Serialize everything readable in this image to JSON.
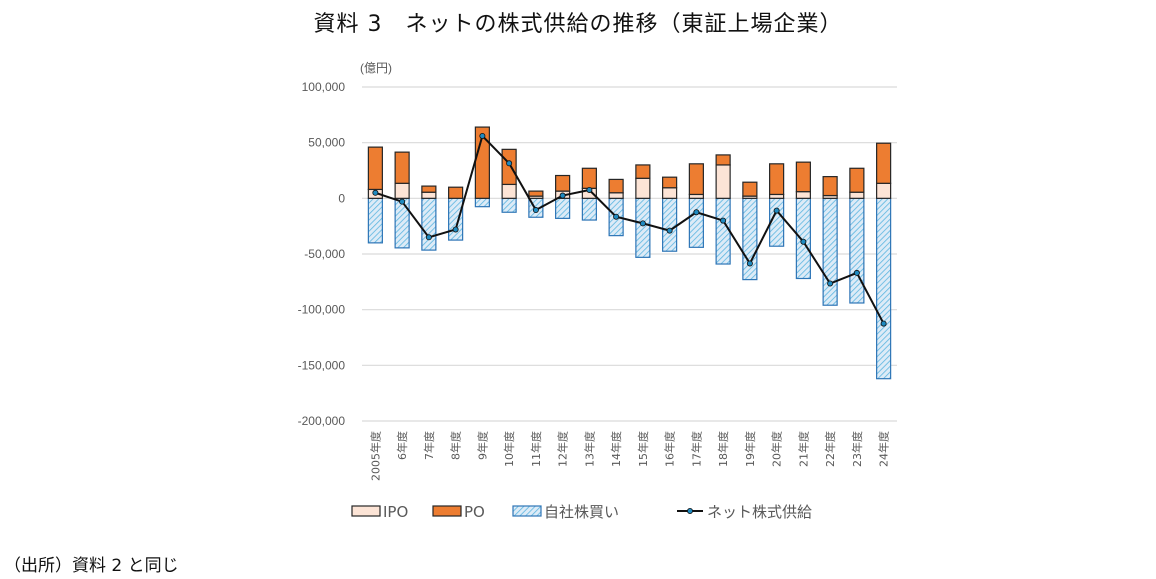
{
  "title": "資料 3　ネットの株式供給の推移（東証上場企業）",
  "source_note": "（出所）資料 2 と同じ",
  "colors": {
    "ipo": "#FCE4D6",
    "po": "#ED7D31",
    "buyback_fill": "#DDEBF7",
    "buyback_hatch": "#5BB5E0",
    "buyback_border": "#2E75B6",
    "bar_border": "#262626",
    "net_line": "#111111",
    "net_marker": "#1F8AC0",
    "grid": "#D9D9D9"
  },
  "chart_data": {
    "type": "bar",
    "subtype": "stacked bar with line overlay",
    "title": "資料 3　ネットの株式供給の推移（東証上場企業）",
    "unit_label": "(億円)",
    "xlabel": "",
    "ylabel": "(億円)",
    "ylim": [
      -200000,
      100000
    ],
    "yticks": [
      100000,
      50000,
      0,
      -50000,
      -100000,
      -150000,
      -200000
    ],
    "ytick_labels": [
      "100,000",
      "50,000",
      "0",
      "-50,000",
      "-100,000",
      "-150,000",
      "-200,000"
    ],
    "grid": true,
    "legend_position": "bottom",
    "categories": [
      "2005年度",
      "6年度",
      "7年度",
      "8年度",
      "9年度",
      "10年度",
      "11年度",
      "12年度",
      "13年度",
      "14年度",
      "15年度",
      "16年度",
      "17年度",
      "18年度",
      "19年度",
      "20年度",
      "21年度",
      "22年度",
      "23年度",
      "24年度"
    ],
    "series": [
      {
        "name": "IPO",
        "kind": "bar",
        "values": [
          8000,
          13500,
          5500,
          0,
          0,
          12500,
          2000,
          6500,
          9000,
          5000,
          18000,
          9500,
          3500,
          30000,
          2000,
          3500,
          6000,
          2500,
          5500,
          13500
        ]
      },
      {
        "name": "PO",
        "kind": "bar",
        "values": [
          38000,
          28000,
          5500,
          10000,
          64000,
          31500,
          4500,
          14000,
          18000,
          12000,
          12000,
          9500,
          27500,
          9000,
          12500,
          27500,
          26500,
          17000,
          21500,
          36000
        ]
      },
      {
        "name": "自社株買い",
        "kind": "bar",
        "values": [
          -40000,
          -44500,
          -46500,
          -37500,
          -7500,
          -12500,
          -17000,
          -18000,
          -19500,
          -33500,
          -53000,
          -47500,
          -44000,
          -59000,
          -73000,
          -43000,
          -72000,
          -96000,
          -94000,
          -162000
        ]
      },
      {
        "name": "ネット株式供給",
        "kind": "line",
        "values": [
          5000,
          -3000,
          -35000,
          -28000,
          56000,
          31500,
          -10500,
          2500,
          7500,
          -16500,
          -22500,
          -29000,
          -12500,
          -20000,
          -58500,
          -11000,
          -39000,
          -76500,
          -67000,
          -112500
        ]
      }
    ]
  }
}
